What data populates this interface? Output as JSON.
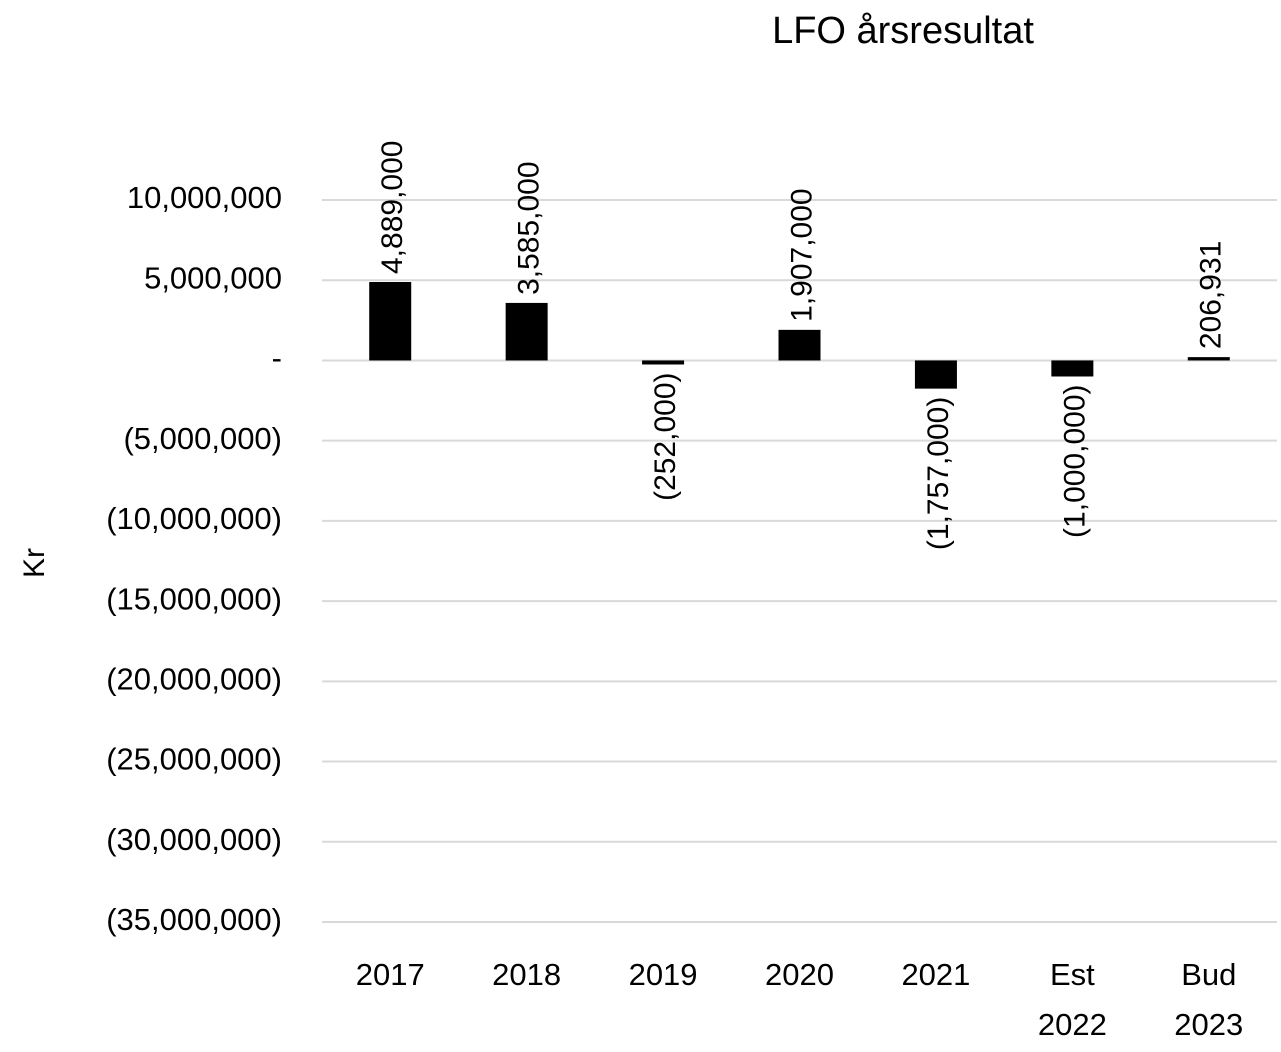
{
  "chart_data": {
    "type": "bar",
    "title": "LFO årsresultat",
    "y_label": "Kr",
    "categories": [
      "2017",
      "2018",
      "2019",
      "2020",
      "2021",
      "Est 2022",
      "Bud 2023"
    ],
    "values": [
      4889000,
      3585000,
      -252000,
      1907000,
      -1757000,
      -1000000,
      206931
    ],
    "value_labels": [
      "4,889,000",
      "3,585,000",
      "(252,000)",
      "1,907,000",
      "(1,757,000)",
      "(1,000,000)",
      "206,931"
    ],
    "color": "#000000",
    "ylim": [
      -35000000,
      10000000
    ],
    "yticks": [
      {
        "value": -35000000,
        "label": "(35,000,000)"
      },
      {
        "value": -30000000,
        "label": "(30,000,000)"
      },
      {
        "value": -25000000,
        "label": "(25,000,000)"
      },
      {
        "value": -20000000,
        "label": "(20,000,000)"
      },
      {
        "value": -15000000,
        "label": "(15,000,000)"
      },
      {
        "value": -10000000,
        "label": "(10,000,000)"
      },
      {
        "value": -5000000,
        "label": "(5,000,000)"
      },
      {
        "value": 0,
        "label": "-"
      },
      {
        "value": 5000000,
        "label": "5,000,000"
      },
      {
        "value": 10000000,
        "label": "10,000,000"
      }
    ],
    "grid": true
  }
}
